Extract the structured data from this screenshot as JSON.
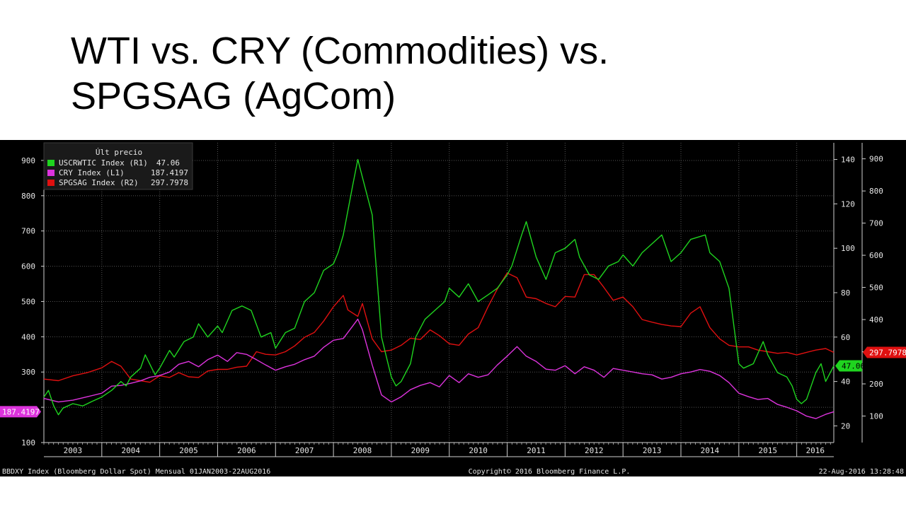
{
  "slide": {
    "title_line1": "WTI vs. CRY (Commodities) vs.",
    "title_line2": "SPGSAG (AgCom)"
  },
  "legend": {
    "header": "Últ precio",
    "entries": [
      {
        "label": "USCRWTIC Index  (R1)",
        "value": "47.06",
        "color": "#1fd41f"
      },
      {
        "label": "CRY Index  (L1)",
        "value": "187.4197",
        "color": "#dd33dd"
      },
      {
        "label": "SPGSAG Index  (R2)",
        "value": "297.7978",
        "color": "#e01010"
      }
    ]
  },
  "footer": {
    "left": "BBDXY Index (Bloomberg Dollar Spot)  Mensual 01JAN2003-22AUG2016",
    "center": "Copyright© 2016 Bloomberg Finance L.P.",
    "right": "22-Aug-2016 13:28:48"
  },
  "chart_data": {
    "type": "line",
    "x_axis": {
      "tick_labels": [
        "2003",
        "2004",
        "2005",
        "2006",
        "2007",
        "2008",
        "2009",
        "2010",
        "2011",
        "2012",
        "2013",
        "2014",
        "2015",
        "2016"
      ],
      "start_year": 2003,
      "end_year": 2016.64
    },
    "y_left": {
      "ylim": [
        100,
        950
      ],
      "ticks": [
        100,
        200,
        300,
        400,
        500,
        600,
        700,
        800,
        900
      ],
      "hidden_tick_labels": [
        200
      ]
    },
    "y_right1": {
      "ylim": [
        12.5,
        147.5
      ],
      "ticks": [
        20,
        40,
        60,
        80,
        100,
        120,
        140
      ]
    },
    "y_right2": {
      "ylim": [
        17.5,
        949.8
      ],
      "ticks": [
        100,
        200,
        300,
        400,
        500,
        600,
        700,
        800,
        900
      ]
    },
    "grid": true,
    "legend_placement": "top-left",
    "last_value_tags": {
      "cry": {
        "text": "187.4197",
        "color": "#dd33dd"
      },
      "wti": {
        "text": "47.06",
        "color": "#1fd41f"
      },
      "spgsag": {
        "text": "297.7978",
        "color": "#e01010"
      }
    },
    "series": [
      {
        "name": "USCRWTIC Index  (R1)",
        "key": "wti",
        "axis": "R1",
        "color": "#1fd41f",
        "x": [
          2003.0,
          2003.08,
          2003.17,
          2003.25,
          2003.33,
          2003.5,
          2003.67,
          2003.83,
          2004.0,
          2004.17,
          2004.33,
          2004.42,
          2004.5,
          2004.67,
          2004.75,
          2004.92,
          2005.0,
          2005.17,
          2005.25,
          2005.42,
          2005.58,
          2005.67,
          2005.83,
          2006.0,
          2006.08,
          2006.25,
          2006.42,
          2006.58,
          2006.75,
          2006.92,
          2007.0,
          2007.17,
          2007.33,
          2007.5,
          2007.67,
          2007.83,
          2008.0,
          2008.08,
          2008.17,
          2008.33,
          2008.42,
          2008.5,
          2008.67,
          2008.83,
          2009.0,
          2009.08,
          2009.17,
          2009.33,
          2009.42,
          2009.58,
          2009.75,
          2009.92,
          2010.0,
          2010.17,
          2010.33,
          2010.5,
          2010.67,
          2010.83,
          2011.0,
          2011.08,
          2011.25,
          2011.33,
          2011.5,
          2011.67,
          2011.83,
          2012.0,
          2012.17,
          2012.25,
          2012.42,
          2012.58,
          2012.75,
          2012.92,
          2013.0,
          2013.17,
          2013.33,
          2013.5,
          2013.67,
          2013.83,
          2014.0,
          2014.17,
          2014.42,
          2014.5,
          2014.67,
          2014.83,
          2015.0,
          2015.08,
          2015.25,
          2015.42,
          2015.5,
          2015.67,
          2015.83,
          2015.92,
          2016.0,
          2016.08,
          2016.17,
          2016.33,
          2016.42,
          2016.5,
          2016.64
        ],
        "y": [
          33,
          36,
          29,
          25,
          28,
          30,
          29,
          31,
          33,
          36,
          40,
          38,
          42,
          46,
          52,
          43,
          46,
          54,
          51,
          58,
          60,
          66,
          60,
          65,
          62,
          72,
          74,
          72,
          60,
          62,
          55,
          62,
          64,
          76,
          80,
          90,
          93,
          98,
          106,
          128,
          140,
          132,
          115,
          60,
          42,
          38,
          40,
          48,
          60,
          68,
          72,
          76,
          82,
          78,
          84,
          76,
          79,
          82,
          88,
          92,
          106,
          112,
          96,
          86,
          98,
          100,
          104,
          96,
          88,
          86,
          92,
          94,
          97,
          92,
          98,
          102,
          106,
          94,
          98,
          104,
          106,
          98,
          94,
          82,
          48,
          46,
          48,
          58,
          52,
          44,
          42,
          38,
          32,
          30,
          32,
          44,
          48,
          40,
          47.06
        ]
      },
      {
        "name": "CRY Index  (L1)",
        "key": "cry",
        "axis": "L1",
        "color": "#dd33dd",
        "x": [
          2003.0,
          2003.25,
          2003.5,
          2003.75,
          2004.0,
          2004.17,
          2004.33,
          2004.5,
          2004.67,
          2004.83,
          2005.0,
          2005.17,
          2005.33,
          2005.5,
          2005.67,
          2005.83,
          2006.0,
          2006.17,
          2006.33,
          2006.5,
          2006.67,
          2006.83,
          2007.0,
          2007.17,
          2007.33,
          2007.5,
          2007.67,
          2007.83,
          2008.0,
          2008.17,
          2008.33,
          2008.42,
          2008.5,
          2008.67,
          2008.83,
          2009.0,
          2009.17,
          2009.33,
          2009.5,
          2009.67,
          2009.83,
          2010.0,
          2010.17,
          2010.33,
          2010.5,
          2010.67,
          2010.83,
          2011.0,
          2011.17,
          2011.33,
          2011.5,
          2011.67,
          2011.83,
          2012.0,
          2012.17,
          2012.33,
          2012.5,
          2012.67,
          2012.83,
          2013.0,
          2013.17,
          2013.33,
          2013.5,
          2013.67,
          2013.83,
          2014.0,
          2014.17,
          2014.33,
          2014.5,
          2014.67,
          2014.83,
          2015.0,
          2015.17,
          2015.33,
          2015.5,
          2015.67,
          2015.83,
          2016.0,
          2016.17,
          2016.33,
          2016.5,
          2016.64
        ],
        "y": [
          225,
          215,
          220,
          230,
          240,
          260,
          262,
          268,
          275,
          285,
          290,
          300,
          322,
          330,
          315,
          335,
          348,
          330,
          355,
          350,
          335,
          320,
          305,
          315,
          322,
          335,
          345,
          370,
          390,
          395,
          430,
          450,
          420,
          320,
          235,
          215,
          230,
          250,
          262,
          270,
          258,
          290,
          270,
          295,
          285,
          292,
          320,
          345,
          372,
          345,
          330,
          308,
          305,
          318,
          295,
          315,
          305,
          285,
          310,
          305,
          300,
          295,
          292,
          280,
          285,
          295,
          300,
          307,
          302,
          290,
          270,
          240,
          230,
          222,
          225,
          208,
          200,
          190,
          175,
          168,
          180,
          187.42
        ]
      },
      {
        "name": "SPGSAG Index  (R2)",
        "key": "spgsag",
        "axis": "R2",
        "color": "#e01010",
        "x": [
          2003.0,
          2003.25,
          2003.5,
          2003.75,
          2004.0,
          2004.17,
          2004.33,
          2004.5,
          2004.67,
          2004.83,
          2005.0,
          2005.17,
          2005.33,
          2005.5,
          2005.67,
          2005.83,
          2006.0,
          2006.17,
          2006.33,
          2006.5,
          2006.67,
          2006.83,
          2007.0,
          2007.17,
          2007.33,
          2007.5,
          2007.67,
          2007.83,
          2008.0,
          2008.17,
          2008.25,
          2008.42,
          2008.5,
          2008.67,
          2008.83,
          2009.0,
          2009.17,
          2009.33,
          2009.5,
          2009.67,
          2009.83,
          2010.0,
          2010.17,
          2010.33,
          2010.5,
          2010.67,
          2010.83,
          2011.0,
          2011.17,
          2011.33,
          2011.5,
          2011.67,
          2011.83,
          2012.0,
          2012.17,
          2012.33,
          2012.5,
          2012.67,
          2012.83,
          2013.0,
          2013.17,
          2013.33,
          2013.5,
          2013.67,
          2013.83,
          2014.0,
          2014.17,
          2014.33,
          2014.5,
          2014.67,
          2014.83,
          2015.0,
          2015.17,
          2015.33,
          2015.5,
          2015.67,
          2015.83,
          2016.0,
          2016.17,
          2016.33,
          2016.5,
          2016.64
        ],
        "y": [
          215,
          210,
          225,
          235,
          250,
          270,
          255,
          215,
          210,
          205,
          225,
          220,
          235,
          222,
          220,
          240,
          245,
          245,
          252,
          255,
          300,
          292,
          290,
          300,
          318,
          345,
          360,
          395,
          440,
          475,
          430,
          410,
          450,
          340,
          300,
          305,
          320,
          342,
          338,
          368,
          350,
          325,
          320,
          355,
          375,
          440,
          495,
          545,
          530,
          470,
          465,
          450,
          440,
          472,
          470,
          540,
          540,
          500,
          460,
          470,
          440,
          400,
          392,
          385,
          380,
          378,
          420,
          440,
          375,
          340,
          320,
          315,
          315,
          305,
          300,
          295,
          298,
          290,
          298,
          305,
          310,
          297.8
        ]
      }
    ]
  }
}
